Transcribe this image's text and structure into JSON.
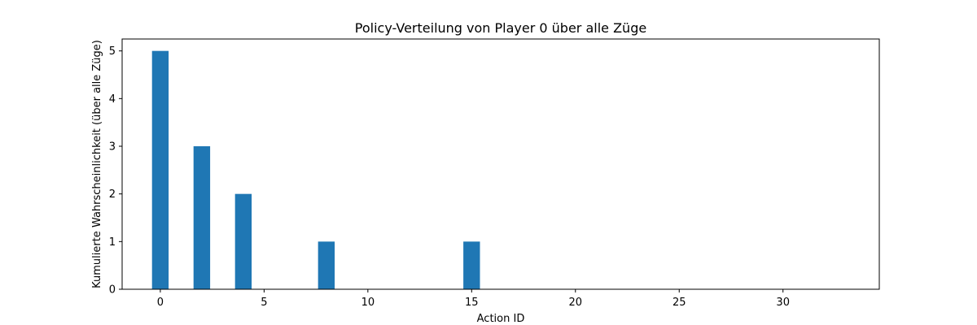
{
  "chart_data": {
    "type": "bar",
    "title": "Policy-Verteilung von Player 0 über alle Züge",
    "xlabel": "Action ID",
    "ylabel": "Kumulierte Wahrscheinlichkeit (über alle Züge)",
    "x": [
      0,
      2,
      4,
      8,
      15
    ],
    "values": [
      5,
      3,
      2,
      1,
      1
    ],
    "bar_width": 0.8,
    "xlim": [
      -1.84,
      34.64
    ],
    "ylim": [
      0,
      5.25
    ],
    "xticks": [
      0,
      5,
      10,
      15,
      20,
      25,
      30
    ],
    "yticks": [
      0,
      1,
      2,
      3,
      4,
      5
    ],
    "grid": false,
    "bar_color": "#1f77b4"
  }
}
